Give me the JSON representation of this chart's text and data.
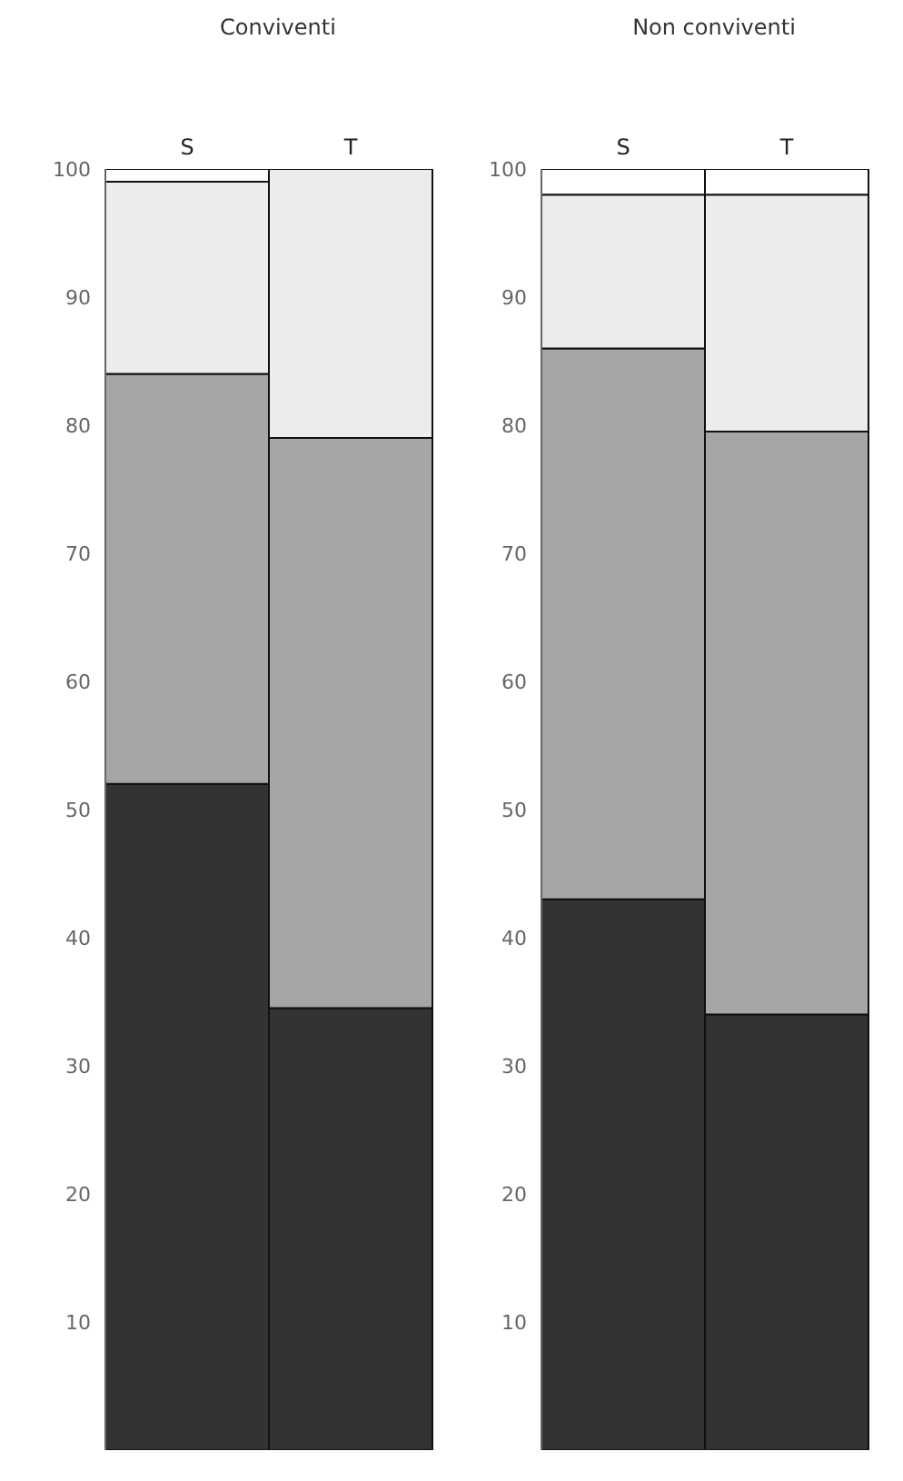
{
  "chart_data": [
    {
      "type": "bar",
      "title": "Conviventi",
      "categories": [
        "S",
        "T"
      ],
      "stacked": true,
      "ylim": [
        0,
        100
      ],
      "yticks": [
        10,
        20,
        30,
        40,
        50,
        60,
        70,
        80,
        90,
        100
      ],
      "grid": false,
      "legend": false,
      "series": [
        {
          "color": "#333333",
          "values": [
            52,
            34.5
          ]
        },
        {
          "color": "#a6a6a6",
          "values": [
            32,
            44.5
          ]
        },
        {
          "color": "#ececec",
          "values": [
            15,
            21
          ]
        },
        {
          "color": "#ffffff",
          "values": [
            1,
            0
          ]
        }
      ]
    },
    {
      "type": "bar",
      "title": "Non conviventi",
      "categories": [
        "S",
        "T"
      ],
      "stacked": true,
      "ylim": [
        0,
        100
      ],
      "yticks": [
        10,
        20,
        30,
        40,
        50,
        60,
        70,
        80,
        90,
        100
      ],
      "grid": false,
      "legend": false,
      "series": [
        {
          "color": "#333333",
          "values": [
            43,
            34
          ]
        },
        {
          "color": "#a6a6a6",
          "values": [
            43,
            45.5
          ]
        },
        {
          "color": "#ececec",
          "values": [
            12,
            18.5
          ]
        },
        {
          "color": "#ffffff",
          "values": [
            2,
            2
          ]
        }
      ]
    }
  ]
}
